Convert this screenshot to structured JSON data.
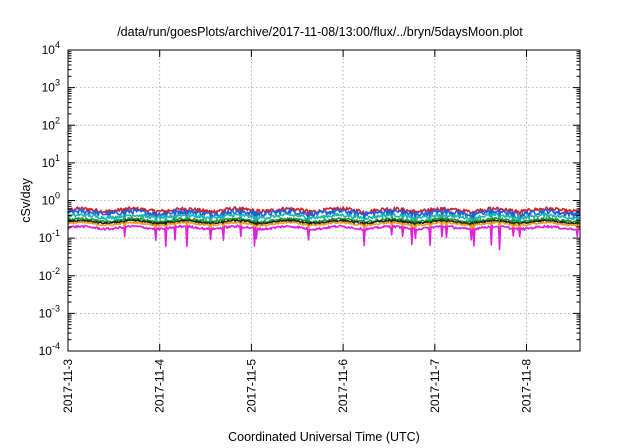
{
  "chart_data": {
    "type": "line",
    "title": "/data/run/goesPlots/archive/2017-11-08/13:00/flux/../bryn/5daysMoon.plot",
    "xlabel": "Coordinated Universal Time (UTC)",
    "ylabel": "cSv/day",
    "yscale": "log",
    "ylim": [
      0.0001,
      10000
    ],
    "xlim": [
      "2017-11-03T00:00",
      "2017-11-08T14:00"
    ],
    "grid": true,
    "x_ticks": [
      "2017-11-3",
      "2017-11-4",
      "2017-11-5",
      "2017-11-6",
      "2017-11-7",
      "2017-11-8"
    ],
    "y_ticks": [
      {
        "value": 0.0001,
        "base": "10",
        "exp": "-4"
      },
      {
        "value": 0.001,
        "base": "10",
        "exp": "-3"
      },
      {
        "value": 0.01,
        "base": "10",
        "exp": "-2"
      },
      {
        "value": 0.1,
        "base": "10",
        "exp": "-1"
      },
      {
        "value": 1,
        "base": "10",
        "exp": "0"
      },
      {
        "value": 10,
        "base": "10",
        "exp": "1"
      },
      {
        "value": 100,
        "base": "10",
        "exp": "2"
      },
      {
        "value": 1000,
        "base": "10",
        "exp": "3"
      },
      {
        "value": 10000,
        "base": "10",
        "exp": "4"
      }
    ],
    "series": [
      {
        "color": "#d62020",
        "base": 0.56,
        "noise": 0.12,
        "dips": 0.3
      },
      {
        "color": "#1f5fe0",
        "base": 0.48,
        "noise": 0.16,
        "dips": 0.55
      },
      {
        "color": "#18b8b0",
        "base": 0.38,
        "noise": 0.1,
        "dips": 0.4
      },
      {
        "color": "#1a9a2a",
        "base": 0.3,
        "noise": 0.08,
        "dips": 0.35
      },
      {
        "color": "#202020",
        "base": 0.27,
        "noise": 0.06,
        "dips": 0.35
      },
      {
        "color": "#e8a020",
        "base": 0.24,
        "noise": 0.05,
        "dips": 0.4
      },
      {
        "color": "#e020e0",
        "base": 0.19,
        "noise": 0.07,
        "dips": 0.75
      }
    ]
  }
}
